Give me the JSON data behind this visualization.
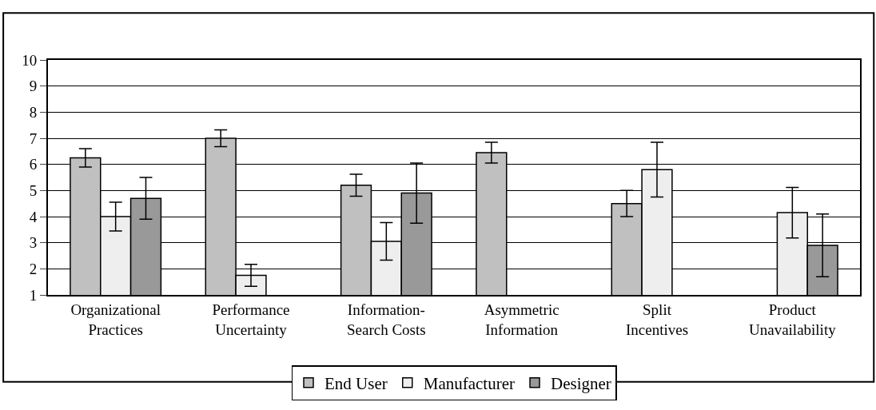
{
  "chart_data": {
    "type": "bar",
    "categories": [
      "Organizational\nPractices",
      "Performance\nUncertainty",
      "Information-\nSearch Costs",
      "Asymmetric\nInformation",
      "Split\nIncentives",
      "Product\nUnavailability"
    ],
    "series": [
      {
        "name": "End User",
        "color": "#c0c0c0",
        "values": [
          6.25,
          7.0,
          5.2,
          6.45,
          4.5,
          null
        ],
        "errors": [
          0.35,
          0.32,
          0.42,
          0.4,
          0.5,
          null
        ]
      },
      {
        "name": "Manufacturer",
        "color": "#eeeeee",
        "values": [
          4.0,
          1.75,
          3.05,
          null,
          5.8,
          4.15
        ],
        "errors": [
          0.55,
          0.42,
          0.72,
          null,
          1.05,
          0.97
        ]
      },
      {
        "name": "Designer",
        "color": "#999999",
        "values": [
          4.7,
          null,
          4.9,
          null,
          null,
          2.9
        ],
        "errors": [
          0.8,
          null,
          1.15,
          null,
          null,
          1.2
        ]
      }
    ],
    "ylim": [
      1,
      10
    ],
    "yticks": [
      1,
      2,
      3,
      4,
      5,
      6,
      7,
      8,
      9,
      10
    ],
    "grid": "y",
    "legend": "bottom"
  }
}
